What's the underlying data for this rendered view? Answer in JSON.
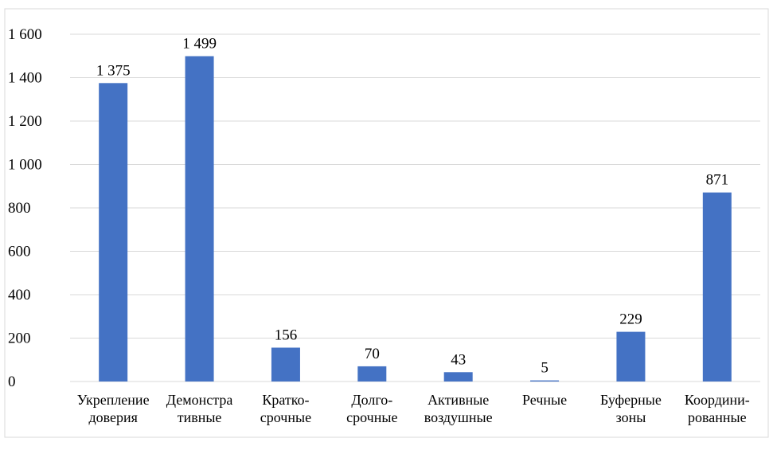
{
  "chart_data": {
    "type": "bar",
    "categories": [
      [
        "Укрепление",
        "доверия"
      ],
      [
        "Демонстра",
        "тивные"
      ],
      [
        "Кратко-",
        "срочные"
      ],
      [
        "Долго-",
        "срочные"
      ],
      [
        "Активные",
        "воздушные"
      ],
      [
        "Речные"
      ],
      [
        "Буферные",
        "зоны"
      ],
      [
        "Координи-",
        "рованные"
      ]
    ],
    "values": [
      1375,
      1499,
      156,
      70,
      43,
      5,
      229,
      871
    ],
    "data_labels": [
      "1 375",
      "1 499",
      "156",
      "70",
      "43",
      "5",
      "229",
      "871"
    ],
    "y_ticks": [
      0,
      200,
      400,
      600,
      800,
      1000,
      1200,
      1400,
      1600
    ],
    "y_tick_labels": [
      "0",
      "200",
      "400",
      "600",
      "800",
      "1 000",
      "1 200",
      "1 400",
      "1 600"
    ],
    "ylim": [
      0,
      1600
    ],
    "grid": true,
    "legend": "none",
    "bar_color": "#4472C4",
    "grid_color": "#d9d9d9",
    "border_color": "#d9d9d9"
  }
}
